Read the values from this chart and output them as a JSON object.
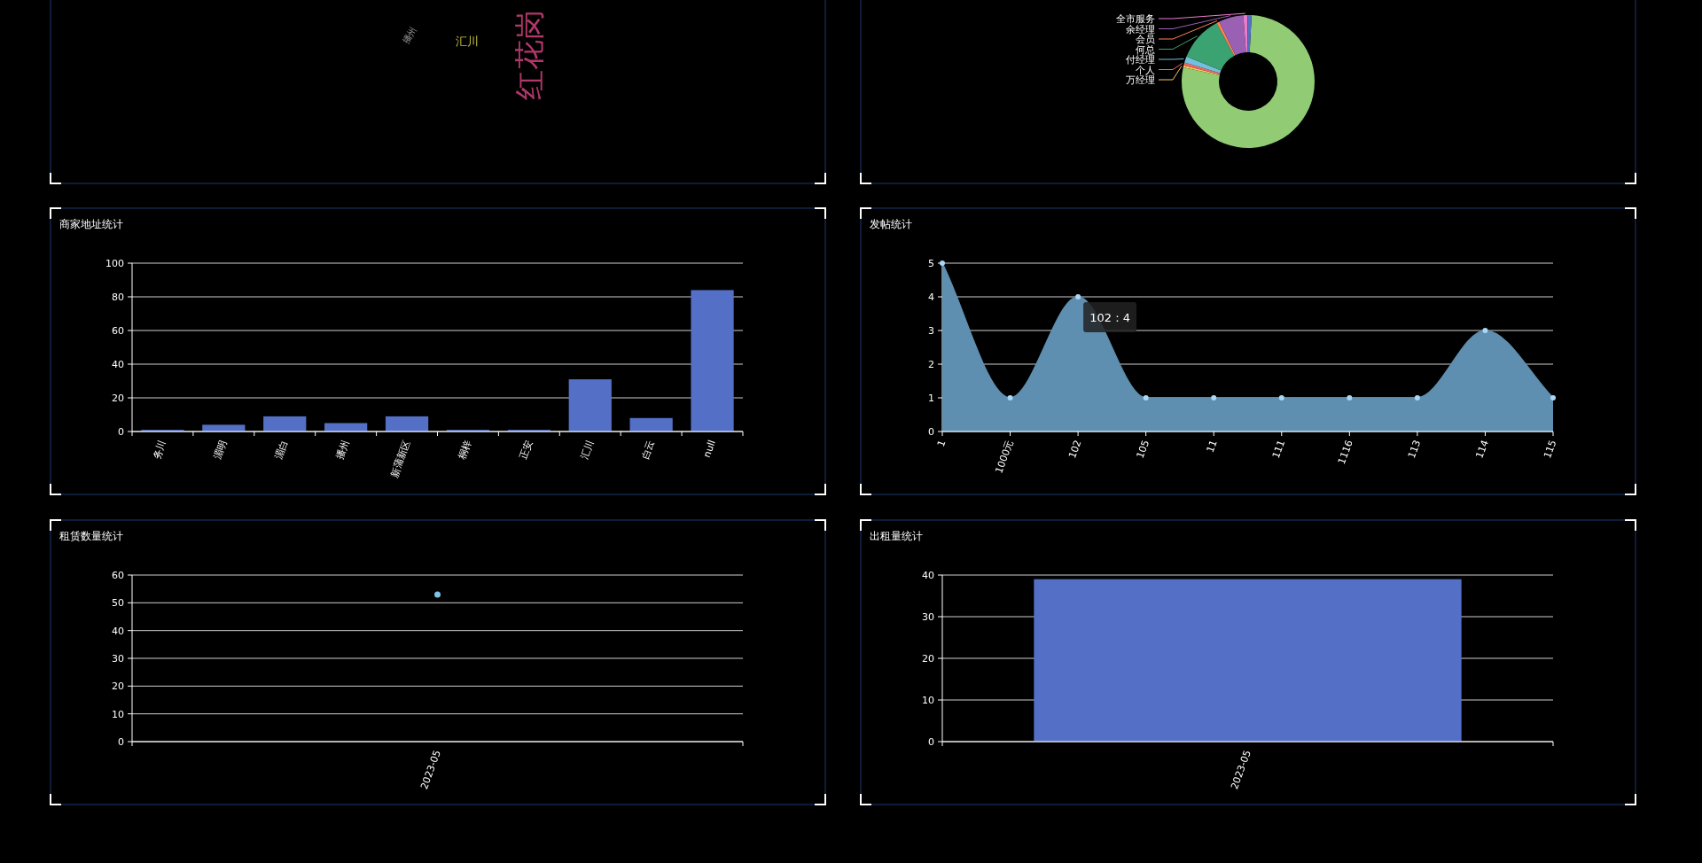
{
  "chart_data": [
    {
      "type": "other",
      "annotations": [
        "红花岗",
        "汇川",
        "播州"
      ],
      "colors": [
        "#b0386a",
        "#c8c43a",
        "#9a9a9a"
      ]
    },
    {
      "type": "donut",
      "categories": [
        null,
        "万经理",
        "个人",
        "付经理",
        "何总",
        "会员",
        "余经理",
        "全市服务",
        null
      ],
      "values": [
        77.6,
        0.5,
        0.7,
        1.5,
        11,
        0.7,
        6,
        1,
        1
      ],
      "colors": [
        "#91cc75",
        "#fac858",
        "#ee6666",
        "#73c0de",
        "#3ba272",
        "#fc8452",
        "#9a60b4",
        "#ea7ccc",
        "#5470c6"
      ]
    },
    {
      "type": "bar",
      "title": "商家地址统计",
      "categories": [
        "务川",
        "湄明",
        "湄白",
        "播州",
        "新蒲新区",
        "桐梓",
        "正安",
        "汇川",
        "白云",
        "null"
      ],
      "values": [
        1,
        4,
        9,
        5,
        9,
        1,
        1,
        31,
        8,
        84
      ],
      "color": "#5470c6",
      "ylim": [
        0,
        100
      ],
      "yticks": [
        0,
        20,
        40,
        60,
        80,
        100
      ],
      "grid": "y"
    },
    {
      "type": "area",
      "title": "发帖统计",
      "categories": [
        "1",
        "1000元",
        "102",
        "105",
        "11",
        "111",
        "1116",
        "113",
        "114",
        "115"
      ],
      "values": [
        5,
        1,
        4,
        1,
        1,
        1,
        1,
        1,
        3,
        1
      ],
      "color": "#5f8fb0",
      "marker": "circle",
      "ylim": [
        0,
        5
      ],
      "yticks": [
        0,
        1,
        2,
        3,
        4,
        5
      ],
      "grid": "y",
      "annotations": [
        {
          "text": "102 : 4",
          "x": "102",
          "y": 4
        }
      ]
    },
    {
      "type": "scatter",
      "title": "租赁数量统计",
      "categories": [
        "2023-05"
      ],
      "values": [
        53
      ],
      "color": "#7ec3ea",
      "ylim": [
        0,
        60
      ],
      "yticks": [
        0,
        10,
        20,
        30,
        40,
        50,
        60
      ],
      "grid": "y"
    },
    {
      "type": "bar",
      "title": "出租量统计",
      "categories": [
        "2023-05"
      ],
      "values": [
        39
      ],
      "color": "#5470c6",
      "ylim": [
        0,
        40
      ],
      "yticks": [
        0,
        10,
        20,
        30,
        40
      ],
      "grid": "y"
    }
  ]
}
